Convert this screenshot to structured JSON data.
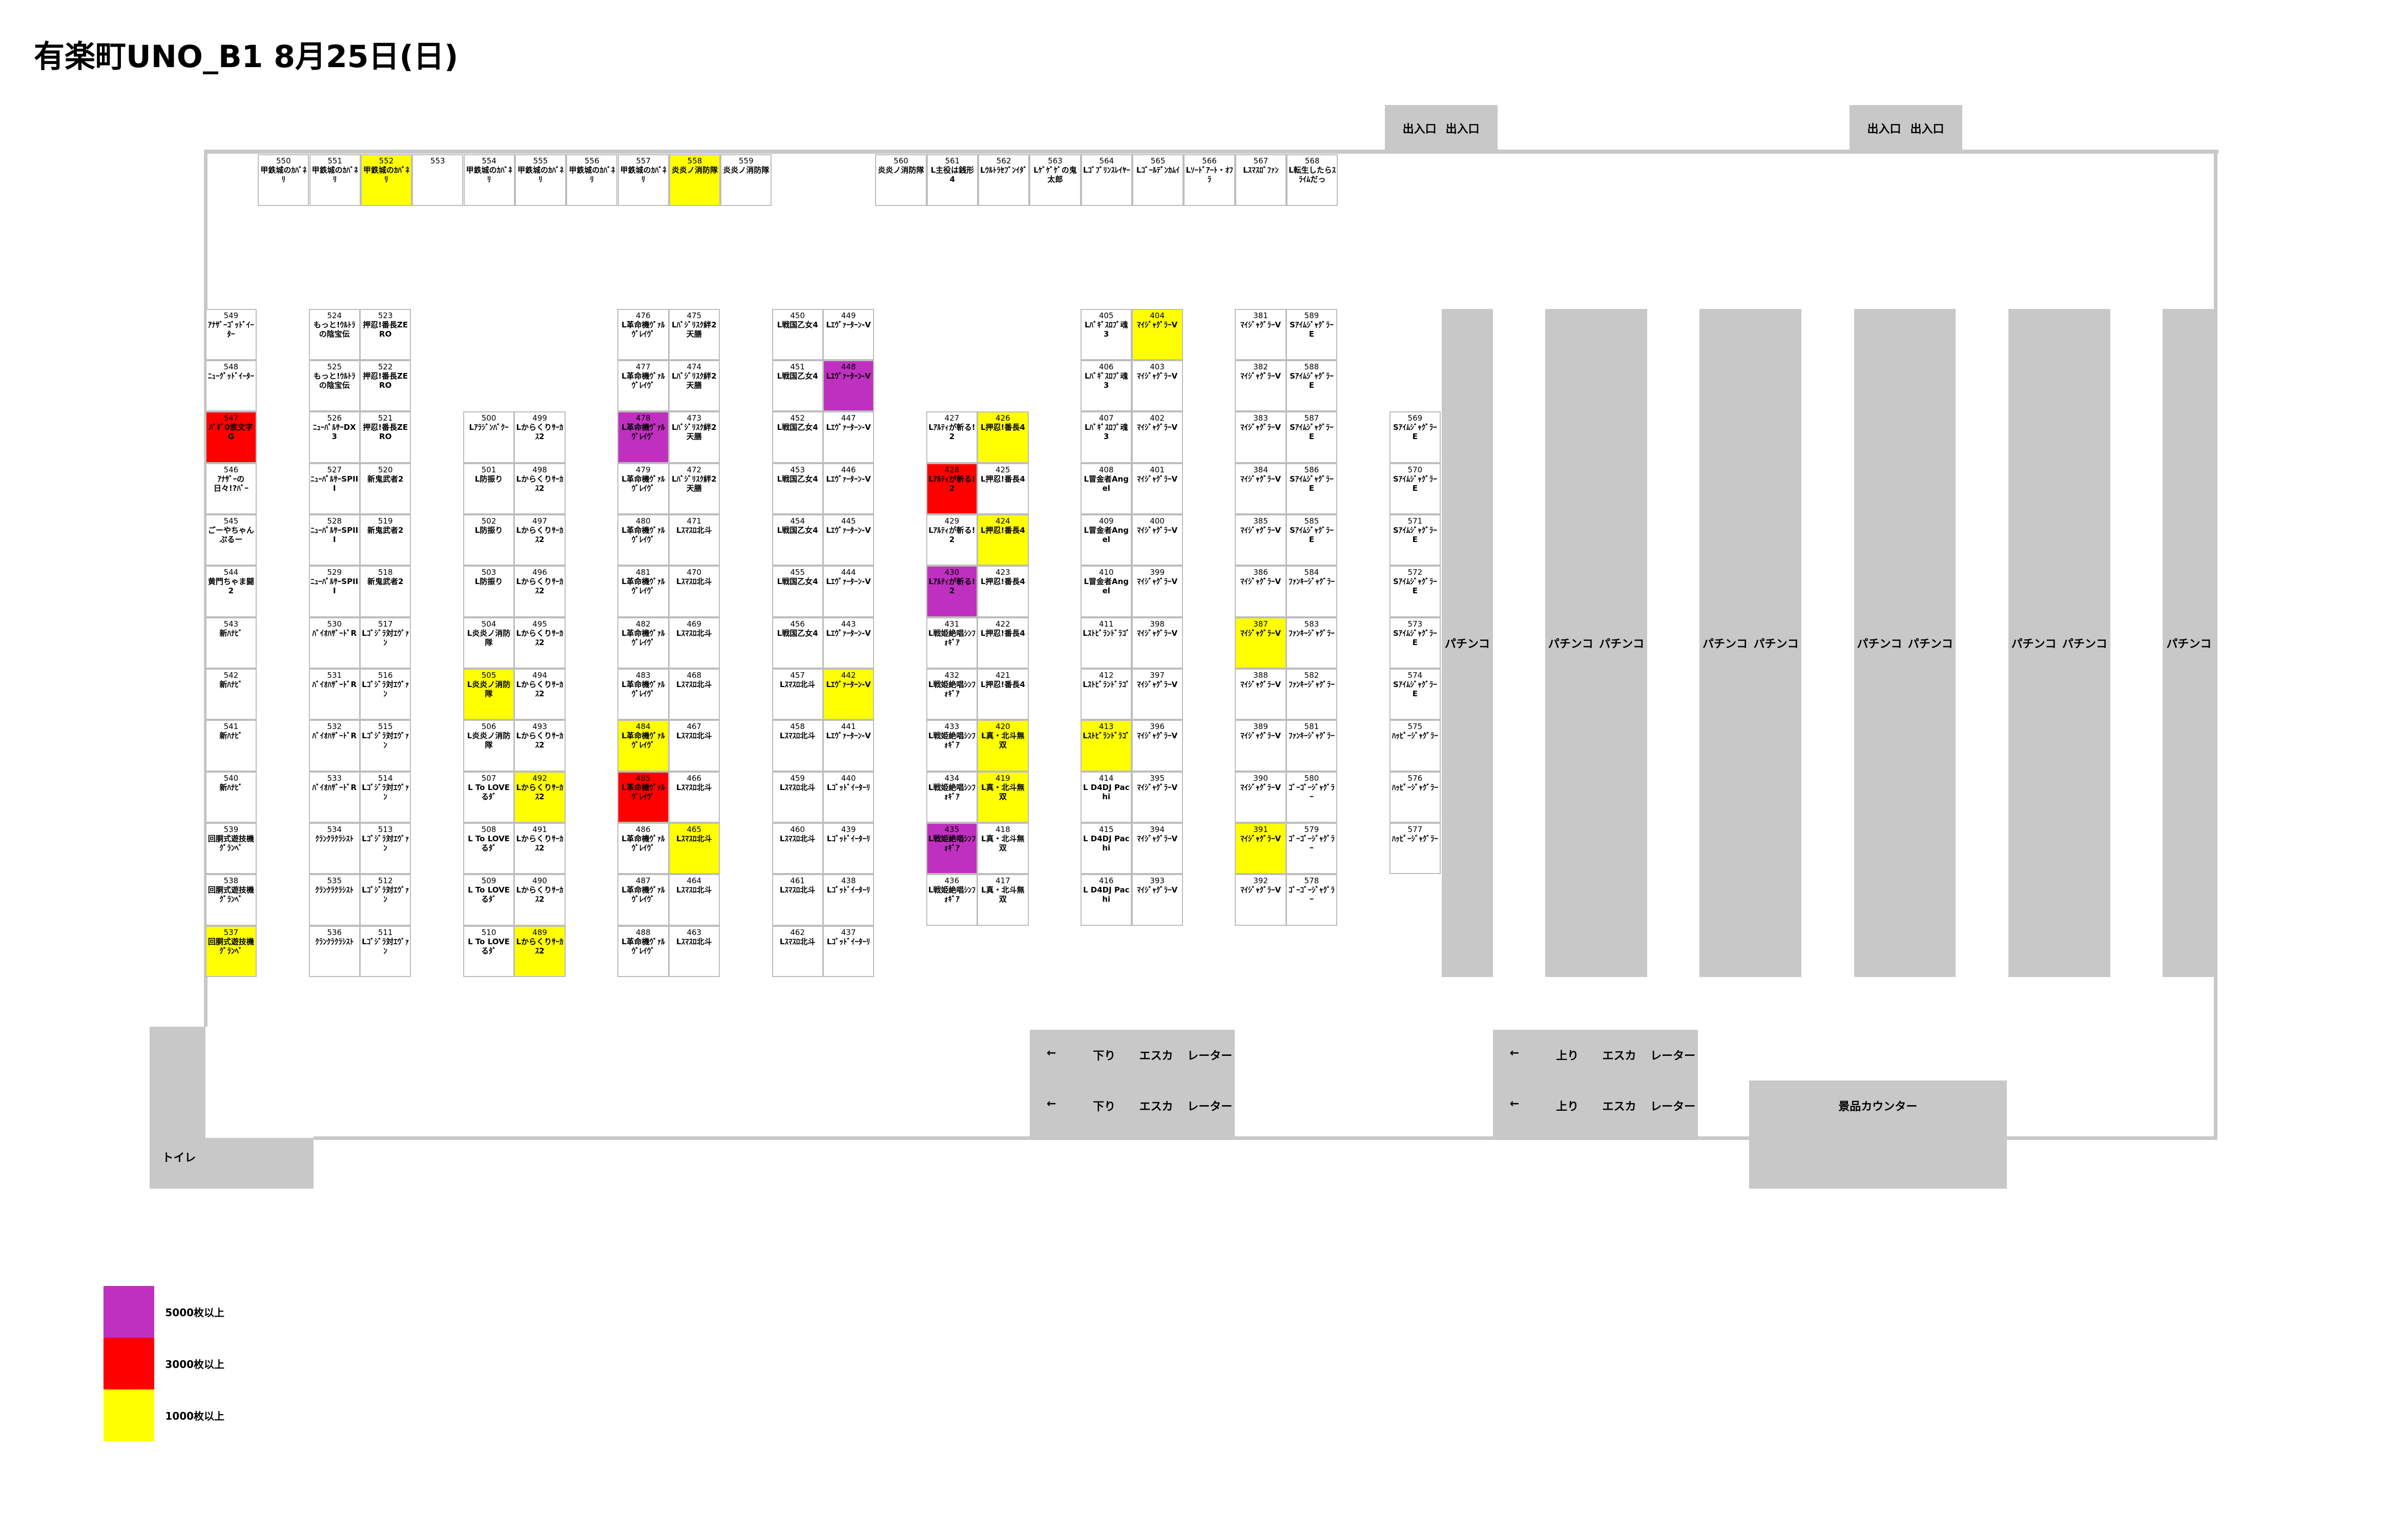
{
  "header": {
    "title": "有楽町UNO_B1 8月25日(日)"
  },
  "entrances": [
    {
      "labels": [
        "出入口",
        "出入口"
      ]
    },
    {
      "labels": [
        "出入口",
        "出入口"
      ]
    }
  ],
  "top_row": [
    {
      "number": 550,
      "name": "甲鉄城のｶﾊﾞﾈﾘ"
    },
    {
      "number": 551,
      "name": "甲鉄城のｶﾊﾞﾈﾘ"
    },
    {
      "number": 552,
      "name": "甲鉄城のｶﾊﾞﾈﾘ",
      "color": "#ffff00"
    },
    {
      "number": 553
    },
    {
      "number": 554,
      "name": "甲鉄城のｶﾊﾞﾈﾘ"
    },
    {
      "number": 555,
      "name": "甲鉄城のｶﾊﾞﾈﾘ"
    },
    {
      "number": 556,
      "name": "甲鉄城のｶﾊﾞﾈﾘ"
    },
    {
      "number": 557,
      "name": "甲鉄城のｶﾊﾞﾈﾘ"
    },
    {
      "number": 558,
      "name": "炎炎ノ消防隊",
      "color": "#ffff00"
    },
    {
      "number": 559,
      "name": "炎炎ノ消防隊"
    },
    {
      "number": 560,
      "name": "炎炎ノ消防隊"
    },
    {
      "number": 561,
      "name": "L主役は銭形4"
    },
    {
      "number": 562,
      "name": "Lｳﾙﾄﾗｾﾌﾞﾝｲﾀﾞ"
    },
    {
      "number": 563,
      "name": "Lｹﾞｹﾞｹﾞの鬼太郎"
    },
    {
      "number": 564,
      "name": "Lｺﾞﾌﾞﾘﾝｽﾚｲﾔｰ"
    },
    {
      "number": 565,
      "name": "Lｺﾞｰﾙﾃﾞﾝｶﾑｲ"
    },
    {
      "number": 566,
      "name": "Lｿｰﾄﾞｱｰﾄ・ｵﾌﾗ"
    },
    {
      "number": 567,
      "name": "Lｽﾏｽﾛﾞﾌｧﾝ"
    },
    {
      "number": 568,
      "name": "L転生したらｽﾗｲﾑだっ"
    }
  ],
  "columns": [
    [
      {
        "number": 549,
        "name": "ｱﾅｻﾞｰｺﾞｯﾄﾞｲｰﾀｰ"
      },
      {
        "number": 548,
        "name": "ﾆｭｰｸﾞｯﾄﾞｲｰﾀｰ"
      },
      {
        "number": 547,
        "name": "ﾊﾞｷﾞ0鉄文字G",
        "color": "#ff0000"
      },
      {
        "number": 546,
        "name": "ｱﾅｻﾞｰの日々!?ﾊﾞｰ"
      },
      {
        "number": 545,
        "name": "ごーやちゃんぷるー"
      },
      {
        "number": 544,
        "name": "黄門ちゃま闘2"
      },
      {
        "number": 543,
        "name": "新ﾊﾅﾋﾞ"
      },
      {
        "number": 542,
        "name": "新ﾊﾅﾋﾞ"
      },
      {
        "number": 541,
        "name": "新ﾊﾅﾋﾞ"
      },
      {
        "number": 540,
        "name": "新ﾊﾅﾋﾞ"
      },
      {
        "number": 539,
        "name": "回胴式遊技機ｸﾞﾗﾝﾍﾞ"
      },
      {
        "number": 538,
        "name": "回胴式遊技機ｸﾞﾗﾝﾍﾞ"
      },
      {
        "number": 537,
        "name": "回胴式遊技機ｸﾞﾗﾝﾍﾞ",
        "color": "#ffff00"
      }
    ],
    [
      {
        "number": 524,
        "name": "もっと!ｳﾙﾄﾗの陰宝伝"
      },
      {
        "number": 525,
        "name": "もっと!ｳﾙﾄﾗの陰宝伝"
      },
      {
        "number": 526,
        "name": "ﾆｭｰﾊﾟﾙｻｰDX3"
      },
      {
        "number": 527,
        "name": "ﾆｭｰﾊﾟﾙｻｰSPIII"
      },
      {
        "number": 528,
        "name": "ﾆｭｰﾊﾟﾙｻｰSPIII"
      },
      {
        "number": 529,
        "name": "ﾆｭｰﾊﾟﾙｻｰSPIII"
      },
      {
        "number": 530,
        "name": "ﾊﾞｲｵﾊｻﾞｰﾄﾞR"
      },
      {
        "number": 531,
        "name": "ﾊﾞｲｵﾊｻﾞｰﾄﾞR"
      },
      {
        "number": 532,
        "name": "ﾊﾞｲｵﾊｻﾞｰﾄﾞR"
      },
      {
        "number": 533,
        "name": "ﾊﾞｲｵﾊｻﾞｰﾄﾞR"
      },
      {
        "number": 534,
        "name": "ｸﾗﾝｸﾗｸﾗｼｽﾄ"
      },
      {
        "number": 535,
        "name": "ｸﾗﾝｸﾗｸﾗｼｽﾄ"
      },
      {
        "number": 536,
        "name": "ｸﾗﾝｸﾗｸﾗｼｽﾄ"
      }
    ],
    [
      {
        "number": 523,
        "name": "押忍!番長ZERO"
      },
      {
        "number": 522,
        "name": "押忍!番長ZERO"
      },
      {
        "number": 521,
        "name": "押忍!番長ZERO"
      },
      {
        "number": 520,
        "name": "新鬼武者2"
      },
      {
        "number": 519,
        "name": "新鬼武者2"
      },
      {
        "number": 518,
        "name": "新鬼武者2"
      },
      {
        "number": 517,
        "name": "Lｺﾞｼﾞﾗ対ｴｳﾞｧﾝ"
      },
      {
        "number": 516,
        "name": "Lｺﾞｼﾞﾗ対ｴｳﾞｧﾝ"
      },
      {
        "number": 515,
        "name": "Lｺﾞｼﾞﾗ対ｴｳﾞｧﾝ"
      },
      {
        "number": 514,
        "name": "Lｺﾞｼﾞﾗ対ｴｳﾞｧﾝ"
      },
      {
        "number": 513,
        "name": "Lｺﾞｼﾞﾗ対ｴｳﾞｧﾝ"
      },
      {
        "number": 512,
        "name": "Lｺﾞｼﾞﾗ対ｴｳﾞｧﾝ"
      },
      {
        "number": 511,
        "name": "Lｺﾞｼﾞﾗ対ｴｳﾞｧﾝ"
      }
    ],
    [
      {
        "number": 500,
        "name": "Lｱﾗｼﾞﾝﾊﾞｸｰ"
      },
      {
        "number": 501,
        "name": "L防振り"
      },
      {
        "number": 502,
        "name": "L防振り"
      },
      {
        "number": 503,
        "name": "L防振り"
      },
      {
        "number": 504,
        "name": "L炎炎ノ消防隊"
      },
      {
        "number": 505,
        "name": "L炎炎ノ消防隊",
        "color": "#ffff00"
      },
      {
        "number": 506,
        "name": "L炎炎ノ消防隊"
      },
      {
        "number": 507,
        "name": "L To LOVEるﾀﾞ"
      },
      {
        "number": 508,
        "name": "L To LOVEるﾀﾞ"
      },
      {
        "number": 509,
        "name": "L To LOVEるﾀﾞ"
      },
      {
        "number": 510,
        "name": "L To LOVEるﾀﾞ"
      }
    ],
    [
      {
        "number": 499,
        "name": "Lからくりｻｰｶｽ2"
      },
      {
        "number": 498,
        "name": "Lからくりｻｰｶｽ2"
      },
      {
        "number": 497,
        "name": "Lからくりｻｰｶｽ2"
      },
      {
        "number": 496,
        "name": "Lからくりｻｰｶｽ2"
      },
      {
        "number": 495,
        "name": "Lからくりｻｰｶｽ2"
      },
      {
        "number": 494,
        "name": "Lからくりｻｰｶｽ2"
      },
      {
        "number": 493,
        "name": "Lからくりｻｰｶｽ2"
      },
      {
        "number": 492,
        "name": "Lからくりｻｰｶｽ2",
        "color": "#ffff00"
      },
      {
        "number": 491,
        "name": "Lからくりｻｰｶｽ2"
      },
      {
        "number": 490,
        "name": "Lからくりｻｰｶｽ2"
      },
      {
        "number": 489,
        "name": "Lからくりｻｰｶｽ2",
        "color": "#ffff00"
      }
    ],
    [
      {
        "number": 476,
        "name": "L革命機ｳﾞｧﾙｳﾞﾚｲｳﾞ"
      },
      {
        "number": 477,
        "name": "L革命機ｳﾞｧﾙｳﾞﾚｲｳﾞ"
      },
      {
        "number": 478,
        "name": "L革命機ｳﾞｧﾙｳﾞﾚｲｳﾞ",
        "color": "#c030c0"
      },
      {
        "number": 479,
        "name": "L革命機ｳﾞｧﾙｳﾞﾚｲｳﾞ"
      },
      {
        "number": 480,
        "name": "L革命機ｳﾞｧﾙｳﾞﾚｲｳﾞ"
      },
      {
        "number": 481,
        "name": "L革命機ｳﾞｧﾙｳﾞﾚｲｳﾞ"
      },
      {
        "number": 482,
        "name": "L革命機ｳﾞｧﾙｳﾞﾚｲｳﾞ"
      },
      {
        "number": 483,
        "name": "L革命機ｳﾞｧﾙｳﾞﾚｲｳﾞ"
      },
      {
        "number": 484,
        "name": "L革命機ｳﾞｧﾙｳﾞﾚｲｳﾞ",
        "color": "#ffff00"
      },
      {
        "number": 485,
        "name": "L革命機ｳﾞｧﾙｳﾞﾚｲｳﾞ",
        "color": "#ff0000"
      },
      {
        "number": 486,
        "name": "L革命機ｳﾞｧﾙｳﾞﾚｲｳﾞ"
      },
      {
        "number": 487,
        "name": "L革命機ｳﾞｧﾙｳﾞﾚｲｳﾞ"
      },
      {
        "number": 488,
        "name": "L革命機ｳﾞｧﾙｳﾞﾚｲｳﾞ"
      }
    ],
    [
      {
        "number": 475,
        "name": "Lﾊﾞｼﾞﾘｽｸ絆2天膳"
      },
      {
        "number": 474,
        "name": "Lﾊﾞｼﾞﾘｽｸ絆2天膳"
      },
      {
        "number": 473,
        "name": "Lﾊﾞｼﾞﾘｽｸ絆2天膳"
      },
      {
        "number": 472,
        "name": "Lﾊﾞｼﾞﾘｽｸ絆2天膳"
      },
      {
        "number": 471,
        "name": "Lｽﾏｽﾛ北斗"
      },
      {
        "number": 470,
        "name": "Lｽﾏｽﾛ北斗"
      },
      {
        "number": 469,
        "name": "Lｽﾏｽﾛ北斗"
      },
      {
        "number": 468,
        "name": "Lｽﾏｽﾛ北斗"
      },
      {
        "number": 467,
        "name": "Lｽﾏｽﾛ北斗"
      },
      {
        "number": 466,
        "name": "Lｽﾏｽﾛ北斗"
      },
      {
        "number": 465,
        "name": "Lｽﾏｽﾛ北斗",
        "color": "#ffff00"
      },
      {
        "number": 464,
        "name": "Lｽﾏｽﾛ北斗"
      },
      {
        "number": 463,
        "name": "Lｽﾏｽﾛ北斗"
      }
    ],
    [
      {
        "number": 450,
        "name": "L戦国乙女4"
      },
      {
        "number": 451,
        "name": "L戦国乙女4"
      },
      {
        "number": 452,
        "name": "L戦国乙女4"
      },
      {
        "number": 453,
        "name": "L戦国乙女4"
      },
      {
        "number": 454,
        "name": "L戦国乙女4"
      },
      {
        "number": 455,
        "name": "L戦国乙女4"
      },
      {
        "number": 456,
        "name": "L戦国乙女4"
      },
      {
        "number": 457,
        "name": "Lｽﾏｽﾛ北斗"
      },
      {
        "number": 458,
        "name": "Lｽﾏｽﾛ北斗"
      },
      {
        "number": 459,
        "name": "Lｽﾏｽﾛ北斗"
      },
      {
        "number": 460,
        "name": "Lｽﾏｽﾛ北斗"
      },
      {
        "number": 461,
        "name": "Lｽﾏｽﾛ北斗"
      },
      {
        "number": 462,
        "name": "Lｽﾏｽﾛ北斗"
      }
    ],
    [
      {
        "number": 449,
        "name": "Lｴｳﾞｧｰﾀｰﾝ-V"
      },
      {
        "number": 448,
        "name": "Lｴｳﾞｧｰﾀｰﾝ-V",
        "color": "#c030c0"
      },
      {
        "number": 447,
        "name": "Lｴｳﾞｧｰﾀｰﾝ-V"
      },
      {
        "number": 446,
        "name": "Lｴｳﾞｧｰﾀｰﾝ-V"
      },
      {
        "number": 445,
        "name": "Lｴｳﾞｧｰﾀｰﾝ-V"
      },
      {
        "number": 444,
        "name": "Lｴｳﾞｧｰﾀｰﾝ-V"
      },
      {
        "number": 443,
        "name": "Lｴｳﾞｧｰﾀｰﾝ-V"
      },
      {
        "number": 442,
        "name": "Lｴｳﾞｧｰﾀｰﾝ-V",
        "color": "#ffff00"
      },
      {
        "number": 441,
        "name": "Lｴｳﾞｧｰﾀｰﾝ-V"
      },
      {
        "number": 440,
        "name": "Lｺﾞｯﾄﾞｲｰﾀｰﾘ"
      },
      {
        "number": 439,
        "name": "Lｺﾞｯﾄﾞｲｰﾀｰﾘ"
      },
      {
        "number": 438,
        "name": "Lｺﾞｯﾄﾞｲｰﾀｰﾘ"
      },
      {
        "number": 437,
        "name": "Lｺﾞｯﾄﾞｲｰﾀｰﾘ"
      }
    ],
    [
      {
        "number": 427,
        "name": "Lｱﾙﾃｨが斬る!2"
      },
      {
        "number": 428,
        "name": "Lｱﾙﾃｨが斬る!2",
        "color": "#ff0000"
      },
      {
        "number": 429,
        "name": "Lｱﾙﾃｨが斬る!2"
      },
      {
        "number": 430,
        "name": "Lｱﾙﾃｨが斬る!2",
        "color": "#c030c0"
      },
      {
        "number": 431,
        "name": "L戦姫絶唱ｼﾝﾌｫｷﾞｱ"
      },
      {
        "number": 432,
        "name": "L戦姫絶唱ｼﾝﾌｫｷﾞｱ"
      },
      {
        "number": 433,
        "name": "L戦姫絶唱ｼﾝﾌｫｷﾞｱ"
      },
      {
        "number": 434,
        "name": "L戦姫絶唱ｼﾝﾌｫｷﾞｱ"
      },
      {
        "number": 435,
        "name": "L戦姫絶唱ｼﾝﾌｫｷﾞｱ",
        "color": "#c030c0"
      },
      {
        "number": 436,
        "name": "L戦姫絶唱ｼﾝﾌｫｷﾞｱ"
      }
    ],
    [
      {
        "number": 426,
        "name": "L押忍!番長4",
        "color": "#ffff00"
      },
      {
        "number": 425,
        "name": "L押忍!番長4"
      },
      {
        "number": 424,
        "name": "L押忍!番長4",
        "color": "#ffff00"
      },
      {
        "number": 423,
        "name": "L押忍!番長4"
      },
      {
        "number": 422,
        "name": "L押忍!番長4"
      },
      {
        "number": 421,
        "name": "L押忍!番長4"
      },
      {
        "number": 420,
        "name": "L真・北斗無双",
        "color": "#ffff00"
      },
      {
        "number": 419,
        "name": "L真・北斗無双",
        "color": "#ffff00"
      },
      {
        "number": 418,
        "name": "L真・北斗無双"
      },
      {
        "number": 417,
        "name": "L真・北斗無双"
      }
    ],
    [
      {
        "number": 405,
        "name": "Lﾊﾞｷﾞｽﾛﾌﾞ魂3"
      },
      {
        "number": 406,
        "name": "Lﾊﾞｷﾞｽﾛﾌﾞ魂3"
      },
      {
        "number": 407,
        "name": "Lﾊﾞｷﾞｽﾛﾌﾞ魂3"
      },
      {
        "number": 408,
        "name": "L冒金者Angel"
      },
      {
        "number": 409,
        "name": "L冒金者Angel"
      },
      {
        "number": 410,
        "name": "L冒金者Angel"
      },
      {
        "number": 411,
        "name": "Lｽﾄﾋﾞﾗﾝﾄﾞﾗｺﾞ"
      },
      {
        "number": 412,
        "name": "Lｽﾄﾋﾞﾗﾝﾄﾞﾗｺﾞ"
      },
      {
        "number": 413,
        "name": "Lｽﾄﾋﾞﾗﾝﾄﾞﾗｺﾞ",
        "color": "#ffff00"
      },
      {
        "number": 414,
        "name": "L D4DJ Pachi"
      },
      {
        "number": 415,
        "name": "L D4DJ Pachi"
      },
      {
        "number": 416,
        "name": "L D4DJ Pachi"
      }
    ],
    [
      {
        "number": 404,
        "name": "ﾏｲｼﾞｬｸﾞﾗｰV",
        "color": "#ffff00"
      },
      {
        "number": 403,
        "name": "ﾏｲｼﾞｬｸﾞﾗｰV"
      },
      {
        "number": 402,
        "name": "ﾏｲｼﾞｬｸﾞﾗｰV"
      },
      {
        "number": 401,
        "name": "ﾏｲｼﾞｬｸﾞﾗｰV"
      },
      {
        "number": 400,
        "name": "ﾏｲｼﾞｬｸﾞﾗｰV"
      },
      {
        "number": 399,
        "name": "ﾏｲｼﾞｬｸﾞﾗｰV"
      },
      {
        "number": 398,
        "name": "ﾏｲｼﾞｬｸﾞﾗｰV"
      },
      {
        "number": 397,
        "name": "ﾏｲｼﾞｬｸﾞﾗｰV"
      },
      {
        "number": 396,
        "name": "ﾏｲｼﾞｬｸﾞﾗｰV"
      },
      {
        "number": 395,
        "name": "ﾏｲｼﾞｬｸﾞﾗｰV"
      },
      {
        "number": 394,
        "name": "ﾏｲｼﾞｬｸﾞﾗｰV"
      },
      {
        "number": 393,
        "name": "ﾏｲｼﾞｬｸﾞﾗｰV"
      }
    ],
    [
      {
        "number": 381,
        "name": "ﾏｲｼﾞｬｸﾞﾗｰV"
      },
      {
        "number": 382,
        "name": "ﾏｲｼﾞｬｸﾞﾗｰV"
      },
      {
        "number": 383,
        "name": "ﾏｲｼﾞｬｸﾞﾗｰV"
      },
      {
        "number": 384,
        "name": "ﾏｲｼﾞｬｸﾞﾗｰV"
      },
      {
        "number": 385,
        "name": "ﾏｲｼﾞｬｸﾞﾗｰV"
      },
      {
        "number": 386,
        "name": "ﾏｲｼﾞｬｸﾞﾗｰV"
      },
      {
        "number": 387,
        "name": "ﾏｲｼﾞｬｸﾞﾗｰV",
        "color": "#ffff00"
      },
      {
        "number": 388,
        "name": "ﾏｲｼﾞｬｸﾞﾗｰV"
      },
      {
        "number": 389,
        "name": "ﾏｲｼﾞｬｸﾞﾗｰV"
      },
      {
        "number": 390,
        "name": "ﾏｲｼﾞｬｸﾞﾗｰV"
      },
      {
        "number": 391,
        "name": "ﾏｲｼﾞｬｸﾞﾗｰV",
        "color": "#ffff00"
      },
      {
        "number": 392,
        "name": "ﾏｲｼﾞｬｸﾞﾗｰV"
      }
    ],
    [
      {
        "number": 589,
        "name": "SｱｲﾑｼﾞｬｸﾞﾗｰE"
      },
      {
        "number": 588,
        "name": "SｱｲﾑｼﾞｬｸﾞﾗｰE"
      },
      {
        "number": 587,
        "name": "SｱｲﾑｼﾞｬｸﾞﾗｰE"
      },
      {
        "number": 586,
        "name": "SｱｲﾑｼﾞｬｸﾞﾗｰE"
      },
      {
        "number": 585,
        "name": "SｱｲﾑｼﾞｬｸﾞﾗｰE"
      },
      {
        "number": 584,
        "name": "ﾌｧﾝｷｰｼﾞｬｸﾞﾗｰ"
      },
      {
        "number": 583,
        "name": "ﾌｧﾝｷｰｼﾞｬｸﾞﾗｰ"
      },
      {
        "number": 582,
        "name": "ﾌｧﾝｷｰｼﾞｬｸﾞﾗｰ"
      },
      {
        "number": 581,
        "name": "ﾌｧﾝｷｰｼﾞｬｸﾞﾗｰ"
      },
      {
        "number": 580,
        "name": "ｺﾞｰｺﾞｰｼﾞｬｸﾞﾗｰ"
      },
      {
        "number": 579,
        "name": "ｺﾞｰｺﾞｰｼﾞｬｸﾞﾗｰ"
      },
      {
        "number": 578,
        "name": "ｺﾞｰｺﾞｰｼﾞｬｸﾞﾗｰ"
      }
    ],
    [
      {
        "number": 569,
        "name": "SｱｲﾑｼﾞｬｸﾞﾗｰE"
      },
      {
        "number": 570,
        "name": "SｱｲﾑｼﾞｬｸﾞﾗｰE"
      },
      {
        "number": 571,
        "name": "SｱｲﾑｼﾞｬｸﾞﾗｰE"
      },
      {
        "number": 572,
        "name": "SｱｲﾑｼﾞｬｸﾞﾗｰE"
      },
      {
        "number": 573,
        "name": "SｱｲﾑｼﾞｬｸﾞﾗｰE"
      },
      {
        "number": 574,
        "name": "SｱｲﾑｼﾞｬｸﾞﾗｰE"
      },
      {
        "number": 575,
        "name": "ﾊｯﾋﾟｰｼﾞｬｸﾞﾗｰ"
      },
      {
        "number": 576,
        "name": "ﾊｯﾋﾟｰｼﾞｬｸﾞﾗｰ"
      },
      {
        "number": 577,
        "name": "ﾊｯﾋﾟｰｼﾞｬｸﾞﾗｰ"
      }
    ]
  ],
  "pachinko": [
    {
      "labels": [
        "パチンコ"
      ]
    },
    {
      "labels": [
        "パチンコ",
        "パチンコ"
      ]
    },
    {
      "labels": [
        "パチンコ",
        "パチンコ"
      ]
    },
    {
      "labels": [
        "パチンコ",
        "パチンコ"
      ]
    },
    {
      "labels": [
        "パチンコ",
        "パチンコ"
      ]
    },
    {
      "labels": [
        "パチンコ"
      ]
    }
  ],
  "escalators": [
    {
      "rows": [
        {
          "arrow": "←",
          "direction": "下り",
          "label": "エスカ レーター"
        },
        {
          "arrow": "←",
          "direction": "下り",
          "label": "エスカ レーター"
        }
      ]
    },
    {
      "rows": [
        {
          "arrow": "←",
          "direction": "上り",
          "label": "エスカ レーター"
        },
        {
          "arrow": "←",
          "direction": "上り",
          "label": "エスカ レーター"
        }
      ]
    }
  ],
  "prize_counter": "景品カウンター",
  "toilet": "トイレ",
  "legend": [
    {
      "color": "#c030c0",
      "label": "5000枚以上"
    },
    {
      "color": "#ff0000",
      "label": "3000枚以上"
    },
    {
      "color": "#ffff00",
      "label": "1000枚以上"
    }
  ]
}
